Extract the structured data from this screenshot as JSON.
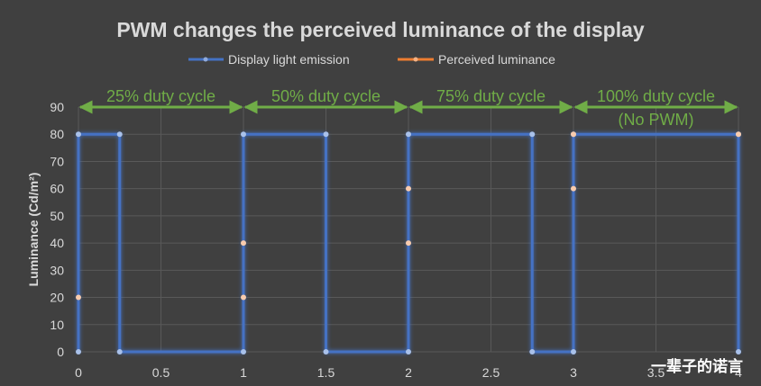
{
  "chart_data": {
    "type": "line",
    "title": "PWM changes the perceived luminance of the display",
    "xlabel": "",
    "ylabel": "Luminance (Cd/m²)",
    "xlim": [
      0,
      4
    ],
    "ylim": [
      0,
      90
    ],
    "x_ticks": [
      "0",
      "0.5",
      "1",
      "1.5",
      "2",
      "2.5",
      "3",
      "3.5",
      "4"
    ],
    "y_ticks": [
      "0",
      "10",
      "20",
      "30",
      "40",
      "50",
      "60",
      "70",
      "80",
      "90"
    ],
    "grid": true,
    "legend_position": "top-center",
    "series": [
      {
        "name": "Display light emission",
        "color": "#4472C4",
        "x": [
          0,
          0,
          0.25,
          0.25,
          1,
          1,
          1.5,
          1.5,
          2,
          2,
          2.75,
          2.75,
          3,
          3,
          4,
          4
        ],
        "y": [
          0,
          80,
          80,
          0,
          0,
          80,
          80,
          0,
          0,
          80,
          80,
          0,
          0,
          80,
          80,
          0
        ]
      },
      {
        "name": "Perceived luminance",
        "color": "#ED7D31",
        "segments": [
          {
            "x": [
              0,
              1
            ],
            "y": [
              20,
              20
            ]
          },
          {
            "x": [
              1,
              2
            ],
            "y": [
              40,
              40
            ]
          },
          {
            "x": [
              2,
              3
            ],
            "y": [
              60,
              60
            ]
          },
          {
            "x": [
              3,
              4
            ],
            "y": [
              80,
              80
            ]
          }
        ]
      }
    ],
    "annotations": [
      {
        "label": "25% duty cycle",
        "x": [
          0,
          1
        ]
      },
      {
        "label": "50% duty cycle",
        "x": [
          1,
          2
        ]
      },
      {
        "label": "75% duty cycle",
        "x": [
          2,
          3
        ]
      },
      {
        "label": "100% duty cycle",
        "sublabel": "(No PWM)",
        "x": [
          3,
          4
        ]
      }
    ],
    "annotation_color": "#70AD47",
    "watermark": "一辈子的诺言"
  }
}
